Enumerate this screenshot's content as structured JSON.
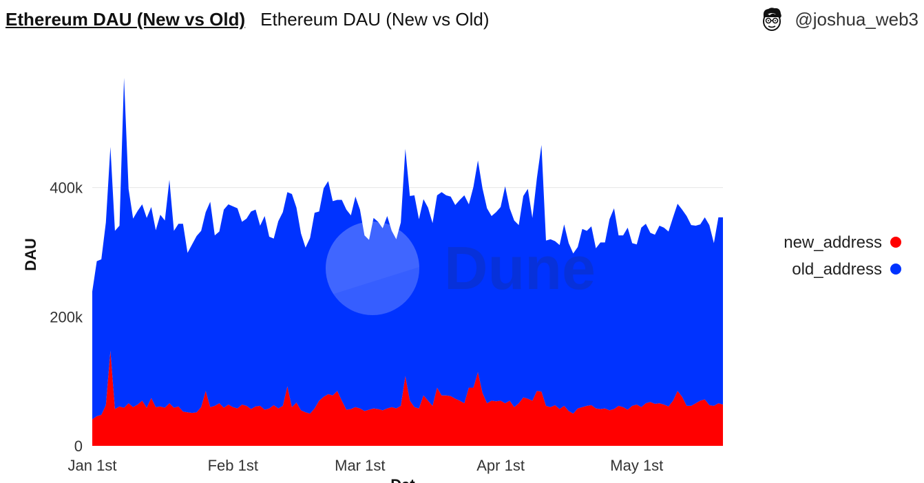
{
  "header": {
    "title": "Ethereum DAU (New vs Old)",
    "subtitle": "Ethereum DAU (New vs Old)",
    "author": "@joshua_web3"
  },
  "icons": {
    "avatar": "cartoon-avatar-icon"
  },
  "watermark": {
    "text": "Dune"
  },
  "colors": {
    "new_address": "#ff0000",
    "old_address": "#0033ff",
    "grid": "#e6e6e6"
  },
  "chart_data": {
    "type": "area",
    "stacked": true,
    "xlabel": "Dat",
    "ylabel": "DAU",
    "ylim": [
      0,
      600000
    ],
    "y_ticks": [
      0,
      200000,
      400000
    ],
    "y_tick_labels": [
      "0",
      "200k",
      "400k"
    ],
    "x_start": "2023-01-01",
    "x_ticks": [
      "2023-01-01",
      "2023-02-01",
      "2023-03-01",
      "2023-04-01",
      "2023-05-01"
    ],
    "x_tick_labels": [
      "Jan 1st",
      "Feb 1st",
      "Mar 1st",
      "Apr 1st",
      "May 1st"
    ],
    "grid": true,
    "legend_position": "right",
    "series": [
      {
        "name": "new_address",
        "color": "#ff0000",
        "values": [
          41000,
          46000,
          48000,
          63000,
          147000,
          57000,
          61000,
          59000,
          66000,
          60000,
          64000,
          70000,
          59000,
          74000,
          60000,
          61000,
          59000,
          66000,
          59000,
          61000,
          53000,
          52000,
          51000,
          52000,
          60000,
          85000,
          60000,
          62000,
          66000,
          59000,
          64000,
          60000,
          58000,
          64000,
          62000,
          57000,
          61000,
          62000,
          56000,
          58000,
          63000,
          58000,
          62000,
          92000,
          60000,
          67000,
          55000,
          52000,
          50000,
          58000,
          70000,
          76000,
          80000,
          78000,
          85000,
          70000,
          56000,
          57000,
          60000,
          58000,
          54000,
          56000,
          58000,
          57000,
          55000,
          58000,
          60000,
          58000,
          62000,
          108000,
          70000,
          60000,
          58000,
          78000,
          70000,
          62000,
          90000,
          78000,
          78000,
          77000,
          73000,
          70000,
          66000,
          90000,
          90000,
          114000,
          82000,
          66000,
          70000,
          69000,
          70000,
          66000,
          70000,
          60000,
          66000,
          75000,
          73000,
          70000,
          85000,
          84000,
          62000,
          60000,
          63000,
          57000,
          62000,
          54000,
          50000,
          58000,
          60000,
          62000,
          63000,
          58000,
          57000,
          58000,
          55000,
          57000,
          62000,
          60000,
          56000,
          62000,
          64000,
          60000,
          66000,
          68000,
          65000,
          66000,
          64000,
          61000,
          70000,
          85000,
          76000,
          62000,
          62000,
          66000,
          70000,
          72000,
          63000,
          62000,
          66000,
          64000
        ]
      },
      {
        "name": "old_address",
        "color": "#0033ff",
        "values": [
          198000,
          240000,
          241000,
          283000,
          316000,
          276000,
          280000,
          511000,
          332000,
          292000,
          300000,
          304000,
          294000,
          296000,
          274000,
          297000,
          290000,
          346000,
          274000,
          283000,
          291000,
          247000,
          261000,
          273000,
          273000,
          277000,
          318000,
          264000,
          266000,
          307000,
          310000,
          311000,
          310000,
          283000,
          290000,
          306000,
          305000,
          279000,
          300000,
          266000,
          258000,
          290000,
          300000,
          301000,
          330000,
          302000,
          274000,
          255000,
          272000,
          303000,
          293000,
          323000,
          330000,
          301000,
          296000,
          311000,
          310000,
          300000,
          326000,
          308000,
          272000,
          263000,
          295000,
          290000,
          282000,
          298000,
          273000,
          262000,
          284000,
          352000,
          317000,
          328000,
          293000,
          304000,
          299000,
          283000,
          298000,
          315000,
          310000,
          309000,
          300000,
          311000,
          322000,
          284000,
          311000,
          328000,
          317000,
          302000,
          286000,
          293000,
          300000,
          336000,
          298000,
          289000,
          276000,
          312000,
          325000,
          283000,
          330000,
          382000,
          256000,
          260000,
          254000,
          254000,
          281000,
          260000,
          248000,
          250000,
          276000,
          271000,
          277000,
          248000,
          258000,
          257000,
          296000,
          311000,
          264000,
          266000,
          282000,
          252000,
          248000,
          278000,
          278000,
          262000,
          262000,
          275000,
          274000,
          271000,
          284000,
          290000,
          290000,
          294000,
          280000,
          275000,
          273000,
          282000,
          279000,
          252000,
          288000,
          290000
        ]
      }
    ]
  }
}
